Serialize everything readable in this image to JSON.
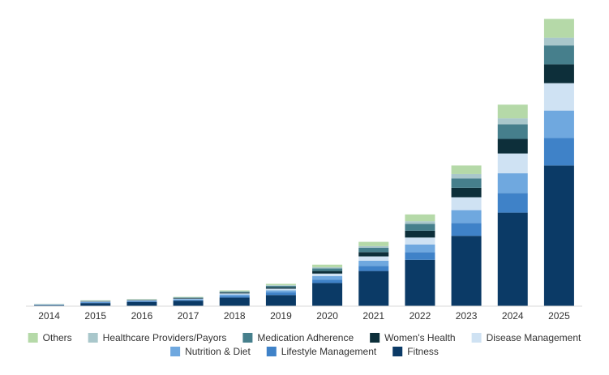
{
  "chart_data": {
    "type": "bar",
    "stacked": true,
    "title": "",
    "xlabel": "",
    "ylabel": "",
    "grid": false,
    "legend_position": "bottom",
    "categories": [
      "2014",
      "2015",
      "2016",
      "2017",
      "2018",
      "2019",
      "2020",
      "2021",
      "2022",
      "2023",
      "2024",
      "2025"
    ],
    "series": [
      {
        "name": "Fitness",
        "color": "#0b3a66",
        "values": [
          0.5,
          1.8,
          2.5,
          3.2,
          5.0,
          6.5,
          13.5,
          20.5,
          27.0,
          41.0,
          54.5,
          82.0
        ]
      },
      {
        "name": "Lifestyle Management",
        "color": "#3f82c8",
        "values": [
          0.2,
          0.4,
          0.4,
          0.5,
          1.0,
          1.5,
          2.0,
          3.0,
          4.5,
          7.5,
          11.5,
          16.0
        ]
      },
      {
        "name": "Nutrition & Diet",
        "color": "#6fa8df",
        "values": [
          0.1,
          0.3,
          0.3,
          0.4,
          0.8,
          1.2,
          2.0,
          3.0,
          4.5,
          7.5,
          11.5,
          16.0
        ]
      },
      {
        "name": "Disease Management",
        "color": "#cfe2f3",
        "values": [
          0.1,
          0.2,
          0.2,
          0.3,
          0.6,
          1.0,
          1.5,
          2.5,
          4.0,
          7.5,
          11.5,
          16.0
        ]
      },
      {
        "name": "Women's Health",
        "color": "#0d2f3a",
        "values": [
          0.1,
          0.2,
          0.2,
          0.3,
          0.5,
          0.8,
          1.5,
          2.5,
          4.0,
          5.5,
          8.5,
          11.0
        ]
      },
      {
        "name": "Medication Adherence",
        "color": "#467f8c",
        "values": [
          0.1,
          0.2,
          0.2,
          0.3,
          0.5,
          0.8,
          1.5,
          2.5,
          4.0,
          5.5,
          8.5,
          11.0
        ]
      },
      {
        "name": "Healthcare Providers/Payors",
        "color": "#a9c7cb",
        "values": [
          0.0,
          0.1,
          0.1,
          0.1,
          0.3,
          0.4,
          0.7,
          1.0,
          1.5,
          2.5,
          3.5,
          4.5
        ]
      },
      {
        "name": "Others",
        "color": "#b5d9a8",
        "values": [
          0.1,
          0.2,
          0.2,
          0.3,
          0.5,
          0.8,
          1.5,
          2.5,
          4.0,
          5.0,
          8.0,
          11.0
        ]
      }
    ],
    "legend_order": [
      "Others",
      "Healthcare Providers/Payors",
      "Medication Adherence",
      "Women's Health",
      "Disease Management",
      "Nutrition & Diet",
      "Lifestyle Management",
      "Fitness"
    ],
    "ylim": [
      0,
      170
    ]
  }
}
